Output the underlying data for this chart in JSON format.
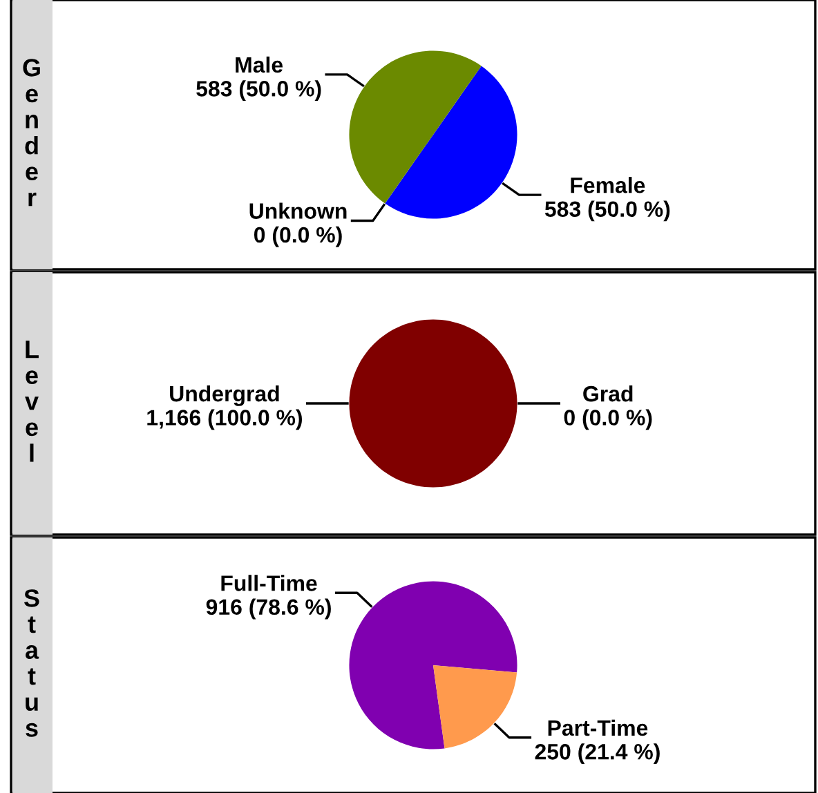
{
  "chart_data": [
    {
      "type": "pie",
      "title": "Gender",
      "categories": [
        "Female",
        "Male",
        "Unknown"
      ],
      "values": [
        583,
        583,
        0
      ],
      "colors": [
        "#0000ff",
        "#6b8a00",
        "#808080"
      ],
      "value_labels": [
        "583 (50.0 %)",
        "583 (50.0 %)",
        "0 (0.0 %)"
      ]
    },
    {
      "type": "pie",
      "title": "Level",
      "categories": [
        "Undergrad",
        "Grad"
      ],
      "values": [
        1166,
        0
      ],
      "colors": [
        "#800000",
        "#808080"
      ],
      "value_labels": [
        "1,166 (100.0 %)",
        "0 (0.0 %)"
      ]
    },
    {
      "type": "pie",
      "title": "Status",
      "categories": [
        "Full-Time",
        "Part-Time"
      ],
      "values": [
        916,
        250
      ],
      "colors": [
        "#8000b0",
        "#ff9a4d"
      ],
      "value_labels": [
        "916 (78.6 %)",
        "250 (21.4 %)"
      ],
      "legend": false
    }
  ]
}
